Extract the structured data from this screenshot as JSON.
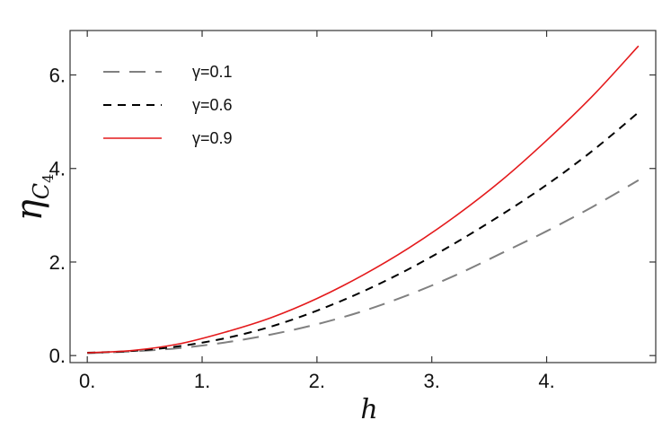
{
  "chart_data": {
    "type": "line",
    "xlabel": "h",
    "ylabel_main": "η",
    "ylabel_subscript": "C",
    "ylabel_subsub": "4",
    "xlim": [
      -0.15,
      4.95
    ],
    "ylim": [
      -0.15,
      6.95
    ],
    "xticks": [
      0,
      1,
      2,
      3,
      4
    ],
    "xtick_labels": [
      "0.",
      "1.",
      "2.",
      "3.",
      "4."
    ],
    "yticks": [
      0,
      2,
      4,
      6
    ],
    "ytick_labels": [
      "0.",
      "2.",
      "4.",
      "6."
    ],
    "grid": false,
    "legend_position": "top-left",
    "series": [
      {
        "name": "γ=0.1",
        "color": "#808080",
        "style": "long-dash",
        "x": [
          0,
          0.4,
          0.8,
          1.2,
          1.6,
          2.0,
          2.4,
          2.8,
          3.2,
          3.6,
          4.0,
          4.4,
          4.8
        ],
        "y": [
          0.05,
          0.09,
          0.16,
          0.28,
          0.45,
          0.67,
          0.95,
          1.3,
          1.71,
          2.18,
          2.66,
          3.18,
          3.75
        ]
      },
      {
        "name": "γ=0.6",
        "color": "#000000",
        "style": "dash",
        "x": [
          0,
          0.4,
          0.8,
          1.2,
          1.6,
          2.0,
          2.4,
          2.8,
          3.2,
          3.6,
          4.0,
          4.4,
          4.8
        ],
        "y": [
          0.06,
          0.1,
          0.2,
          0.37,
          0.62,
          0.96,
          1.37,
          1.85,
          2.4,
          3.0,
          3.65,
          4.38,
          5.2
        ]
      },
      {
        "name": "γ=0.9",
        "color": "#e41a1c",
        "style": "solid",
        "x": [
          0,
          0.4,
          0.8,
          1.2,
          1.6,
          2.0,
          2.4,
          2.8,
          3.2,
          3.6,
          4.0,
          4.4,
          4.8
        ],
        "y": [
          0.06,
          0.11,
          0.25,
          0.5,
          0.81,
          1.22,
          1.72,
          2.3,
          2.97,
          3.73,
          4.6,
          5.55,
          6.62
        ]
      }
    ]
  }
}
